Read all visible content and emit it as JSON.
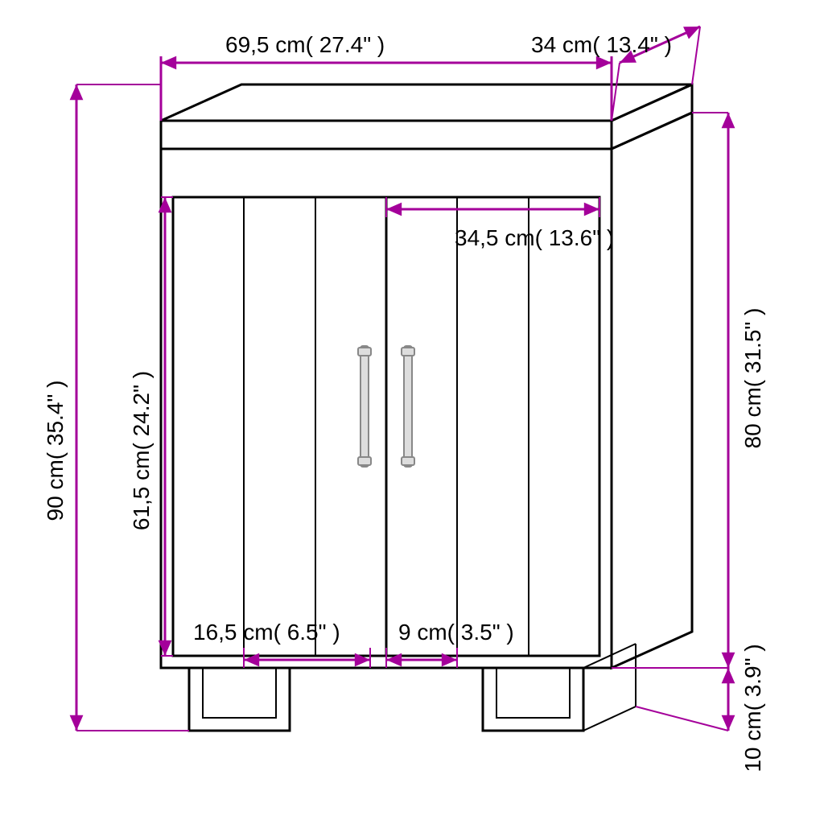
{
  "dimensions": {
    "width_top": {
      "text": "69,5 cm( 27.4\" )"
    },
    "depth_top": {
      "text": "34 cm( 13.4\" )"
    },
    "shelf_width": {
      "text": "34,5 cm( 13.6\" )"
    },
    "door_height": {
      "text": "61,5 cm( 24.2\" )"
    },
    "total_height": {
      "text": "90 cm( 35.4\" )"
    },
    "body_height": {
      "text": "80 cm( 31.5\" )"
    },
    "leg_height": {
      "text": "10 cm( 3.9\" )"
    },
    "panel_a": {
      "text": "16,5 cm( 6.5\" )"
    },
    "panel_b": {
      "text": "9 cm( 3.5\" )"
    }
  },
  "style": {
    "dim_color": "#a4009a",
    "text_color": "#000000",
    "arrow_size": 12
  }
}
